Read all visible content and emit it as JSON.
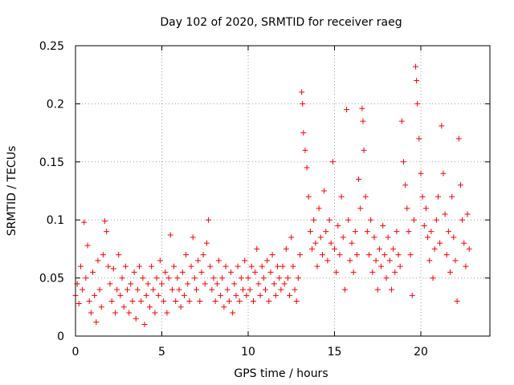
{
  "chart_data": {
    "type": "scatter",
    "title": "Day 102 of 2020, SRMTID for receiver raeg",
    "xlabel": "GPS time / hours",
    "ylabel": "SRMTID / TECUs",
    "xlim": [
      0,
      24
    ],
    "ylim": [
      0,
      0.25
    ],
    "xticks": [
      0,
      5,
      10,
      15,
      20
    ],
    "xtick_labels": [
      "0",
      "5",
      "10",
      "15",
      "20"
    ],
    "yticks": [
      0,
      0.05,
      0.1,
      0.15,
      0.2,
      0.25
    ],
    "ytick_labels": [
      "0",
      "0.05",
      "0.1",
      "0.15",
      "0.2",
      "0.25"
    ],
    "grid": true,
    "marker": "+",
    "series": [
      {
        "name": "raeg",
        "color": "#ff0000",
        "points": [
          [
            0.0,
            0.035
          ],
          [
            0.1,
            0.045
          ],
          [
            0.2,
            0.028
          ],
          [
            0.3,
            0.06
          ],
          [
            0.4,
            0.04
          ],
          [
            0.5,
            0.098
          ],
          [
            0.6,
            0.05
          ],
          [
            0.7,
            0.078
          ],
          [
            0.8,
            0.03
          ],
          [
            0.9,
            0.02
          ],
          [
            1.0,
            0.055
          ],
          [
            1.1,
            0.035
          ],
          [
            1.2,
            0.012
          ],
          [
            1.3,
            0.065
          ],
          [
            1.4,
            0.04
          ],
          [
            1.5,
            0.025
          ],
          [
            1.6,
            0.07
          ],
          [
            1.7,
            0.099
          ],
          [
            1.8,
            0.09
          ],
          [
            1.9,
            0.06
          ],
          [
            2.0,
            0.045
          ],
          [
            2.1,
            0.03
          ],
          [
            2.2,
            0.058
          ],
          [
            2.3,
            0.02
          ],
          [
            2.4,
            0.04
          ],
          [
            2.5,
            0.07
          ],
          [
            2.6,
            0.035
          ],
          [
            2.7,
            0.05
          ],
          [
            2.8,
            0.025
          ],
          [
            2.9,
            0.06
          ],
          [
            3.0,
            0.04
          ],
          [
            3.1,
            0.02
          ],
          [
            3.2,
            0.045
          ],
          [
            3.3,
            0.03
          ],
          [
            3.4,
            0.055
          ],
          [
            3.5,
            0.015
          ],
          [
            3.6,
            0.04
          ],
          [
            3.7,
            0.06
          ],
          [
            3.8,
            0.03
          ],
          [
            3.9,
            0.05
          ],
          [
            4.0,
            0.01
          ],
          [
            4.1,
            0.035
          ],
          [
            4.2,
            0.045
          ],
          [
            4.3,
            0.025
          ],
          [
            4.4,
            0.06
          ],
          [
            4.5,
            0.04
          ],
          [
            4.6,
            0.02
          ],
          [
            4.7,
            0.05
          ],
          [
            4.8,
            0.035
          ],
          [
            4.9,
            0.065
          ],
          [
            5.0,
            0.045
          ],
          [
            5.1,
            0.03
          ],
          [
            5.2,
            0.055
          ],
          [
            5.3,
            0.02
          ],
          [
            5.4,
            0.05
          ],
          [
            5.5,
            0.087
          ],
          [
            5.6,
            0.04
          ],
          [
            5.7,
            0.06
          ],
          [
            5.8,
            0.03
          ],
          [
            5.9,
            0.05
          ],
          [
            6.0,
            0.04
          ],
          [
            6.1,
            0.025
          ],
          [
            6.2,
            0.055
          ],
          [
            6.3,
            0.035
          ],
          [
            6.4,
            0.07
          ],
          [
            6.5,
            0.045
          ],
          [
            6.6,
            0.03
          ],
          [
            6.7,
            0.06
          ],
          [
            6.8,
            0.085
          ],
          [
            6.9,
            0.05
          ],
          [
            7.0,
            0.04
          ],
          [
            7.1,
            0.065
          ],
          [
            7.2,
            0.03
          ],
          [
            7.3,
            0.055
          ],
          [
            7.4,
            0.07
          ],
          [
            7.5,
            0.045
          ],
          [
            7.6,
            0.08
          ],
          [
            7.7,
            0.1
          ],
          [
            7.8,
            0.06
          ],
          [
            7.9,
            0.04
          ],
          [
            8.0,
            0.05
          ],
          [
            8.1,
            0.03
          ],
          [
            8.2,
            0.045
          ],
          [
            8.3,
            0.065
          ],
          [
            8.4,
            0.035
          ],
          [
            8.5,
            0.05
          ],
          [
            8.6,
            0.025
          ],
          [
            8.7,
            0.06
          ],
          [
            8.8,
            0.04
          ],
          [
            8.9,
            0.03
          ],
          [
            9.0,
            0.055
          ],
          [
            9.1,
            0.02
          ],
          [
            9.2,
            0.045
          ],
          [
            9.3,
            0.035
          ],
          [
            9.4,
            0.06
          ],
          [
            9.5,
            0.03
          ],
          [
            9.6,
            0.05
          ],
          [
            9.7,
            0.04
          ],
          [
            9.8,
            0.065
          ],
          [
            9.9,
            0.035
          ],
          [
            10.0,
            0.05
          ],
          [
            10.1,
            0.04
          ],
          [
            10.2,
            0.06
          ],
          [
            10.3,
            0.03
          ],
          [
            10.4,
            0.055
          ],
          [
            10.5,
            0.075
          ],
          [
            10.6,
            0.045
          ],
          [
            10.7,
            0.035
          ],
          [
            10.8,
            0.06
          ],
          [
            10.9,
            0.05
          ],
          [
            11.0,
            0.04
          ],
          [
            11.1,
            0.065
          ],
          [
            11.2,
            0.03
          ],
          [
            11.3,
            0.055
          ],
          [
            11.4,
            0.07
          ],
          [
            11.5,
            0.045
          ],
          [
            11.6,
            0.035
          ],
          [
            11.7,
            0.06
          ],
          [
            11.8,
            0.05
          ],
          [
            11.9,
            0.04
          ],
          [
            12.0,
            0.06
          ],
          [
            12.1,
            0.045
          ],
          [
            12.2,
            0.075
          ],
          [
            12.3,
            0.05
          ],
          [
            12.4,
            0.035
          ],
          [
            12.5,
            0.085
          ],
          [
            12.6,
            0.06
          ],
          [
            12.7,
            0.04
          ],
          [
            12.8,
            0.03
          ],
          [
            12.9,
            0.05
          ],
          [
            13.0,
            0.07
          ],
          [
            13.1,
            0.21
          ],
          [
            13.15,
            0.2
          ],
          [
            13.2,
            0.175
          ],
          [
            13.3,
            0.16
          ],
          [
            13.4,
            0.145
          ],
          [
            13.5,
            0.12
          ],
          [
            13.6,
            0.09
          ],
          [
            13.7,
            0.075
          ],
          [
            13.8,
            0.1
          ],
          [
            13.9,
            0.08
          ],
          [
            14.0,
            0.06
          ],
          [
            14.1,
            0.11
          ],
          [
            14.2,
            0.085
          ],
          [
            14.3,
            0.07
          ],
          [
            14.4,
            0.125
          ],
          [
            14.5,
            0.09
          ],
          [
            14.6,
            0.065
          ],
          [
            14.7,
            0.1
          ],
          [
            14.8,
            0.08
          ],
          [
            14.9,
            0.15
          ],
          [
            15.0,
            0.075
          ],
          [
            15.1,
            0.055
          ],
          [
            15.2,
            0.095
          ],
          [
            15.3,
            0.07
          ],
          [
            15.4,
            0.12
          ],
          [
            15.5,
            0.085
          ],
          [
            15.6,
            0.04
          ],
          [
            15.7,
            0.195
          ],
          [
            15.8,
            0.1
          ],
          [
            15.9,
            0.065
          ],
          [
            16.0,
            0.08
          ],
          [
            16.1,
            0.055
          ],
          [
            16.2,
            0.09
          ],
          [
            16.3,
            0.07
          ],
          [
            16.4,
            0.135
          ],
          [
            16.5,
            0.11
          ],
          [
            16.6,
            0.196
          ],
          [
            16.65,
            0.185
          ],
          [
            16.7,
            0.16
          ],
          [
            16.8,
            0.12
          ],
          [
            16.9,
            0.09
          ],
          [
            17.0,
            0.07
          ],
          [
            17.1,
            0.1
          ],
          [
            17.2,
            0.055
          ],
          [
            17.3,
            0.085
          ],
          [
            17.4,
            0.065
          ],
          [
            17.5,
            0.04
          ],
          [
            17.6,
            0.075
          ],
          [
            17.7,
            0.06
          ],
          [
            17.8,
            0.095
          ],
          [
            17.9,
            0.07
          ],
          [
            18.0,
            0.05
          ],
          [
            18.1,
            0.085
          ],
          [
            18.2,
            0.065
          ],
          [
            18.3,
            0.04
          ],
          [
            18.4,
            0.075
          ],
          [
            18.5,
            0.055
          ],
          [
            18.6,
            0.09
          ],
          [
            18.7,
            0.07
          ],
          [
            18.8,
            0.06
          ],
          [
            18.9,
            0.185
          ],
          [
            19.0,
            0.15
          ],
          [
            19.1,
            0.13
          ],
          [
            19.2,
            0.11
          ],
          [
            19.3,
            0.09
          ],
          [
            19.4,
            0.07
          ],
          [
            19.5,
            0.035
          ],
          [
            19.6,
            0.1
          ],
          [
            19.7,
            0.232
          ],
          [
            19.75,
            0.22
          ],
          [
            19.8,
            0.2
          ],
          [
            19.9,
            0.17
          ],
          [
            20.0,
            0.14
          ],
          [
            20.1,
            0.12
          ],
          [
            20.2,
            0.095
          ],
          [
            20.3,
            0.11
          ],
          [
            20.4,
            0.085
          ],
          [
            20.5,
            0.065
          ],
          [
            20.6,
            0.09
          ],
          [
            20.7,
            0.05
          ],
          [
            20.8,
            0.075
          ],
          [
            20.9,
            0.1
          ],
          [
            21.0,
            0.12
          ],
          [
            21.1,
            0.08
          ],
          [
            21.2,
            0.181
          ],
          [
            21.3,
            0.14
          ],
          [
            21.4,
            0.105
          ],
          [
            21.5,
            0.07
          ],
          [
            21.6,
            0.09
          ],
          [
            21.7,
            0.055
          ],
          [
            21.8,
            0.12
          ],
          [
            21.9,
            0.085
          ],
          [
            22.0,
            0.065
          ],
          [
            22.1,
            0.03
          ],
          [
            22.2,
            0.17
          ],
          [
            22.3,
            0.13
          ],
          [
            22.4,
            0.1
          ],
          [
            22.5,
            0.08
          ],
          [
            22.6,
            0.06
          ],
          [
            22.7,
            0.105
          ],
          [
            22.8,
            0.075
          ]
        ]
      }
    ]
  }
}
